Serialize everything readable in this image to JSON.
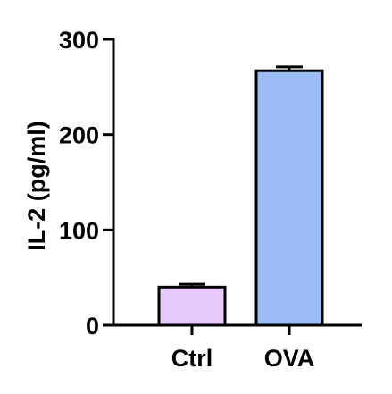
{
  "chart_data": {
    "type": "bar",
    "title": "",
    "xlabel": "",
    "ylabel": "IL-2 (pg/ml)",
    "categories": [
      "Ctrl",
      "OVA"
    ],
    "values": [
      40,
      267
    ],
    "errors": [
      3,
      4
    ],
    "bar_colors": [
      "#E6C8FA",
      "#9BBCF5"
    ],
    "ylim": [
      0,
      300
    ],
    "yticks": [
      0,
      100,
      200,
      300
    ],
    "ytick_labels": [
      "0",
      "100",
      "200",
      "300"
    ],
    "grid": false,
    "legend": "none"
  }
}
